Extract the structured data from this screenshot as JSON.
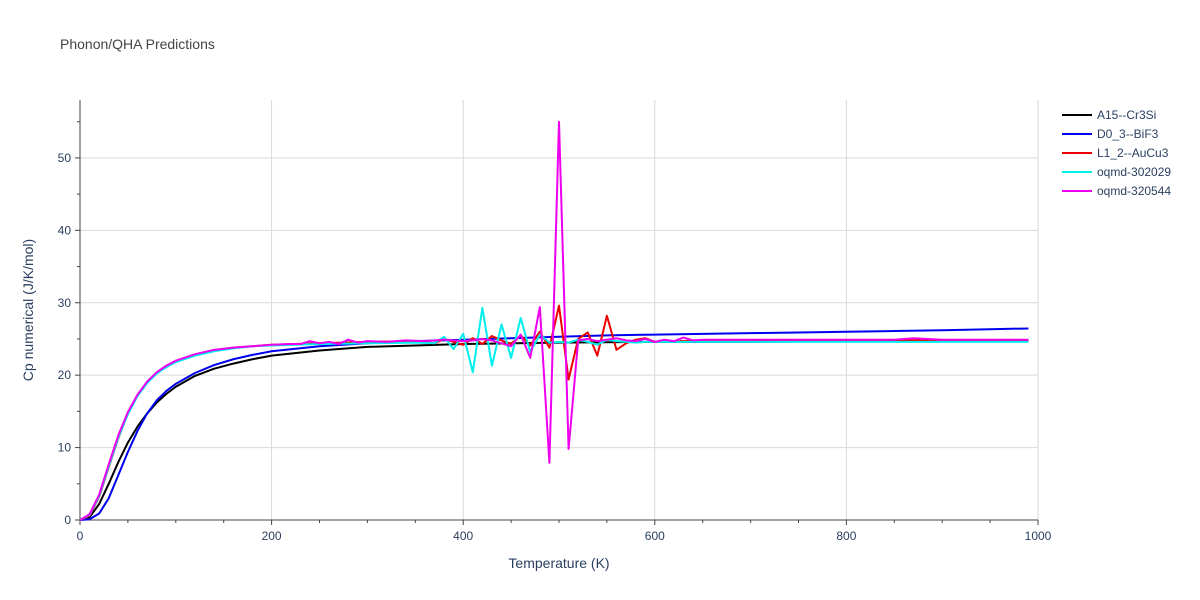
{
  "chart_data": {
    "type": "line",
    "title": "Phonon/QHA Predictions",
    "xlabel": "Temperature (K)",
    "ylabel": "Cp numerical (J/K/mol)",
    "xlim": [
      0,
      1000
    ],
    "ylim": [
      0,
      58
    ],
    "xticks": [
      0,
      200,
      400,
      600,
      800,
      1000
    ],
    "yticks": [
      0,
      10,
      20,
      30,
      40,
      50
    ],
    "grid": true,
    "legend_position": "top-right",
    "series": [
      {
        "name": "A15--Cr3Si",
        "color": "#000000",
        "x": [
          0,
          10,
          20,
          30,
          40,
          50,
          60,
          70,
          80,
          90,
          100,
          120,
          140,
          160,
          180,
          200,
          250,
          300,
          350,
          400,
          500,
          600,
          700,
          800,
          900,
          990
        ],
        "y": [
          0,
          0.4,
          2.2,
          5.0,
          8.0,
          10.7,
          12.9,
          14.7,
          16.2,
          17.4,
          18.4,
          19.9,
          20.9,
          21.6,
          22.2,
          22.7,
          23.4,
          23.9,
          24.1,
          24.3,
          24.5,
          24.6,
          24.6,
          24.7,
          24.7,
          24.7
        ]
      },
      {
        "name": "D0_3--BiF3",
        "color": "#0000ee",
        "x": [
          0,
          10,
          20,
          30,
          40,
          50,
          60,
          70,
          80,
          90,
          100,
          120,
          140,
          160,
          180,
          200,
          250,
          300,
          350,
          400,
          450,
          500,
          550,
          600,
          650,
          700,
          750,
          800,
          850,
          900,
          950,
          990
        ],
        "y": [
          0,
          0.1,
          0.9,
          3.0,
          6.2,
          9.4,
          12.3,
          14.7,
          16.5,
          17.8,
          18.8,
          20.3,
          21.4,
          22.2,
          22.8,
          23.3,
          24.0,
          24.4,
          24.7,
          24.9,
          25.1,
          25.3,
          25.5,
          25.6,
          25.7,
          25.8,
          25.9,
          26.0,
          26.1,
          26.2,
          26.35,
          26.45
        ]
      },
      {
        "name": "L1_2--AuCu3",
        "color": "#ee0000",
        "x": [
          0,
          10,
          20,
          30,
          40,
          50,
          60,
          70,
          80,
          90,
          100,
          120,
          140,
          160,
          180,
          200,
          250,
          300,
          350,
          370,
          380,
          390,
          400,
          410,
          420,
          430,
          440,
          450,
          460,
          470,
          480,
          490,
          500,
          510,
          520,
          530,
          540,
          550,
          560,
          570,
          580,
          590,
          600,
          650,
          700,
          800,
          900,
          990
        ],
        "y": [
          0,
          0.6,
          3.2,
          7.3,
          11.3,
          14.7,
          17.2,
          19.0,
          20.3,
          21.2,
          21.9,
          22.8,
          23.4,
          23.8,
          24.0,
          24.2,
          24.4,
          24.6,
          24.7,
          24.4,
          25.0,
          24.6,
          24.2,
          25.1,
          24.3,
          25.4,
          24.8,
          24.3,
          25.5,
          24.1,
          26.0,
          23.8,
          29.6,
          19.4,
          25.0,
          25.9,
          22.7,
          28.2,
          23.5,
          24.4,
          24.9,
          25.1,
          24.6,
          24.8,
          24.8,
          24.8,
          24.8,
          24.8
        ]
      },
      {
        "name": "oqmd-302029",
        "color": "#00eeee",
        "x": [
          0,
          10,
          20,
          30,
          40,
          50,
          60,
          70,
          80,
          90,
          100,
          120,
          140,
          160,
          180,
          200,
          250,
          300,
          350,
          370,
          380,
          390,
          400,
          410,
          420,
          430,
          440,
          450,
          460,
          470,
          480,
          490,
          500,
          510,
          520,
          530,
          540,
          550,
          560,
          570,
          580,
          590,
          600,
          650,
          700,
          800,
          900,
          990
        ],
        "y": [
          0,
          0.7,
          3.3,
          7.4,
          11.4,
          14.6,
          17.1,
          18.9,
          20.2,
          21.1,
          21.8,
          22.7,
          23.3,
          23.7,
          24.0,
          24.1,
          24.3,
          24.4,
          24.5,
          24.4,
          25.3,
          23.6,
          25.7,
          20.4,
          29.3,
          21.3,
          27.0,
          22.4,
          27.9,
          23.2,
          25.6,
          24.5,
          24.6,
          24.5,
          24.9,
          24.6,
          24.2,
          24.9,
          24.7,
          24.6,
          24.5,
          24.6,
          24.6,
          24.6,
          24.6,
          24.6,
          24.6,
          24.6
        ]
      },
      {
        "name": "oqmd-320544",
        "color": "#ee00ee",
        "x": [
          0,
          10,
          20,
          30,
          40,
          50,
          60,
          70,
          80,
          90,
          100,
          120,
          140,
          160,
          180,
          200,
          220,
          230,
          240,
          250,
          260,
          270,
          280,
          290,
          300,
          320,
          340,
          360,
          380,
          400,
          410,
          420,
          430,
          440,
          450,
          460,
          470,
          480,
          490,
          500,
          510,
          520,
          530,
          540,
          550,
          560,
          570,
          580,
          590,
          600,
          610,
          620,
          630,
          640,
          650,
          700,
          750,
          800,
          850,
          870,
          900,
          950,
          990
        ],
        "y": [
          0,
          0.8,
          3.5,
          7.7,
          11.7,
          14.9,
          17.3,
          19.1,
          20.4,
          21.3,
          22.0,
          22.9,
          23.5,
          23.8,
          24.0,
          24.2,
          24.3,
          24.3,
          24.7,
          24.4,
          24.6,
          24.3,
          24.9,
          24.5,
          24.7,
          24.6,
          24.8,
          24.7,
          24.9,
          24.7,
          24.8,
          25.0,
          24.8,
          24.4,
          24.0,
          25.6,
          22.4,
          29.4,
          7.9,
          55.0,
          9.8,
          24.8,
          25.0,
          24.7,
          24.9,
          25.1,
          24.8,
          24.7,
          25.0,
          24.6,
          24.9,
          24.7,
          25.2,
          24.8,
          24.9,
          24.9,
          24.9,
          24.9,
          24.9,
          25.1,
          24.9,
          24.9,
          24.9
        ]
      }
    ]
  }
}
